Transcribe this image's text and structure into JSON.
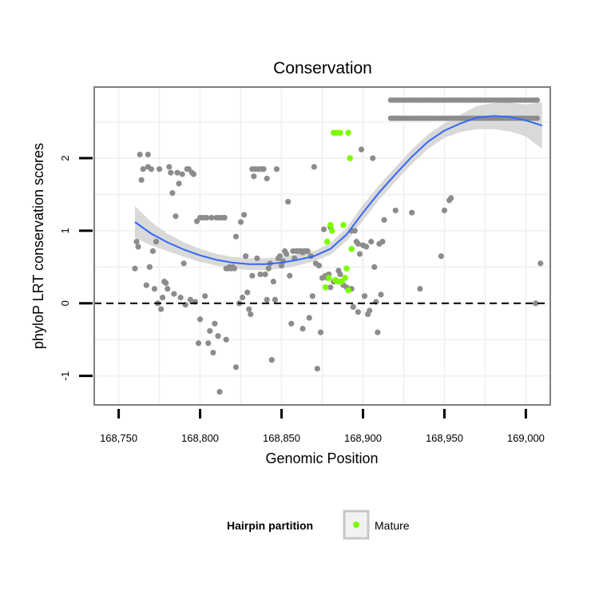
{
  "chart_data": {
    "type": "scatter",
    "title": "Conservation",
    "xlabel": "Genomic Position",
    "ylabel": "phyloP LRT conservation scores",
    "xlim": [
      168735,
      169015
    ],
    "ylim": [
      -1.4,
      2.98
    ],
    "x_ticks": [
      168750,
      168800,
      168850,
      168900,
      168950,
      169000
    ],
    "x_tick_labels": [
      "168,750",
      "168,800",
      "168,850",
      "168,900",
      "168,950",
      "169,000"
    ],
    "y_ticks": [
      -1,
      0,
      1,
      2
    ],
    "y_tick_labels": [
      "-1",
      "0",
      "1",
      "2"
    ],
    "grid": true,
    "reference_line": {
      "y": 0,
      "style": "dashed"
    },
    "legend": {
      "title": "Hairpin partition",
      "position": "bottom",
      "entries": [
        {
          "label": "Mature",
          "color": "#7cfc00"
        }
      ]
    },
    "colors": {
      "other": "#8c8c8c",
      "mature": "#7cfc00",
      "smooth": "#3366ff",
      "ribbon": "#d9d9d9",
      "panel_border": "#7f7f7f",
      "grid": "#f2f2f2"
    },
    "series": [
      {
        "role": "other",
        "points": [
          [
            168760,
            0.48
          ],
          [
            168761,
            0.85
          ],
          [
            168762,
            0.78
          ],
          [
            168763,
            2.05
          ],
          [
            168764,
            1.7
          ],
          [
            168765,
            1.85
          ],
          [
            168767,
            0.25
          ],
          [
            168768,
            2.05
          ],
          [
            168768,
            1.88
          ],
          [
            168769,
            0.5
          ],
          [
            168770,
            1.85
          ],
          [
            168771,
            0.72
          ],
          [
            168772,
            0.2
          ],
          [
            168773,
            0.85
          ],
          [
            168774,
            0.0
          ],
          [
            168775,
            1.85
          ],
          [
            168776,
            -0.08
          ],
          [
            168777,
            0.08
          ],
          [
            168778,
            0.3
          ],
          [
            168779,
            0.28
          ],
          [
            168780,
            0.2
          ],
          [
            168781,
            1.88
          ],
          [
            168782,
            1.8
          ],
          [
            168783,
            1.52
          ],
          [
            168784,
            0.13
          ],
          [
            168785,
            1.2
          ],
          [
            168786,
            1.8
          ],
          [
            168787,
            1.65
          ],
          [
            168788,
            0.08
          ],
          [
            168789,
            1.78
          ],
          [
            168790,
            0.55
          ],
          [
            168791,
            -0.02
          ],
          [
            168792,
            1.85
          ],
          [
            168793,
            1.85
          ],
          [
            168794,
            0.05
          ],
          [
            168795,
            1.8
          ],
          [
            168796,
            1.78
          ],
          [
            168797,
            0.02
          ],
          [
            168798,
            1.13
          ],
          [
            168799,
            -0.55
          ],
          [
            168800,
            1.18
          ],
          [
            168800,
            -0.22
          ],
          [
            168802,
            1.18
          ],
          [
            168803,
            0.1
          ],
          [
            168804,
            1.18
          ],
          [
            168805,
            -0.55
          ],
          [
            168806,
            -0.38
          ],
          [
            168807,
            1.18
          ],
          [
            168808,
            -0.68
          ],
          [
            168809,
            -0.28
          ],
          [
            168810,
            1.18
          ],
          [
            168811,
            -0.45
          ],
          [
            168812,
            1.18
          ],
          [
            168812,
            -1.22
          ],
          [
            168814,
            1.18
          ],
          [
            168815,
            1.18
          ],
          [
            168816,
            0.48
          ],
          [
            168816,
            -0.5
          ],
          [
            168817,
            0.48
          ],
          [
            168818,
            0.5
          ],
          [
            168819,
            0.48
          ],
          [
            168820,
            0.5
          ],
          [
            168821,
            0.48
          ],
          [
            168822,
            0.92
          ],
          [
            168822,
            -0.88
          ],
          [
            168824,
            0.0
          ],
          [
            168825,
            1.12
          ],
          [
            168826,
            0.08
          ],
          [
            168827,
            1.22
          ],
          [
            168828,
            0.65
          ],
          [
            168829,
            0.15
          ],
          [
            168830,
            -0.08
          ],
          [
            168831,
            -0.15
          ],
          [
            168832,
            1.85
          ],
          [
            168832,
            0.38
          ],
          [
            168833,
            1.75
          ],
          [
            168834,
            1.85
          ],
          [
            168835,
            0.62
          ],
          [
            168836,
            1.85
          ],
          [
            168837,
            0.4
          ],
          [
            168838,
            1.85
          ],
          [
            168839,
            1.85
          ],
          [
            168840,
            0.4
          ],
          [
            168841,
            1.72
          ],
          [
            168841,
            0.05
          ],
          [
            168842,
            0.48
          ],
          [
            168843,
            0.55
          ],
          [
            168844,
            -0.78
          ],
          [
            168845,
            0.3
          ],
          [
            168846,
            0.05
          ],
          [
            168847,
            1.85
          ],
          [
            168848,
            0.62
          ],
          [
            168849,
            0.65
          ],
          [
            168850,
            0.52
          ],
          [
            168851,
            0.58
          ],
          [
            168852,
            0.72
          ],
          [
            168853,
            0.68
          ],
          [
            168854,
            1.4
          ],
          [
            168855,
            0.38
          ],
          [
            168856,
            -0.28
          ],
          [
            168857,
            0.72
          ],
          [
            168858,
            0.62
          ],
          [
            168859,
            0.72
          ],
          [
            168860,
            0.72
          ],
          [
            168861,
            0.72
          ],
          [
            168862,
            0.72
          ],
          [
            168863,
            0.7
          ],
          [
            168863,
            -0.35
          ],
          [
            168864,
            0.72
          ],
          [
            168865,
            0.72
          ],
          [
            168866,
            0.72
          ],
          [
            168867,
            -0.2
          ],
          [
            168868,
            0.65
          ],
          [
            168869,
            0.1
          ],
          [
            168870,
            1.88
          ],
          [
            168871,
            0.55
          ],
          [
            168872,
            -0.9
          ],
          [
            168873,
            0.52
          ],
          [
            168874,
            -0.4
          ],
          [
            168875,
            0.35
          ],
          [
            168876,
            1.02
          ],
          [
            168877,
            0.38
          ],
          [
            168878,
            0.35
          ],
          [
            168879,
            0.4
          ],
          [
            168880,
            1.05
          ],
          [
            168880,
            0.22
          ],
          [
            168882,
            0.3
          ],
          [
            168885,
            0.45
          ],
          [
            168886,
            0.4
          ],
          [
            168888,
            0.25
          ],
          [
            168890,
            0.22
          ],
          [
            168893,
            1.0
          ],
          [
            168893,
            0.2
          ],
          [
            168894,
            -0.05
          ],
          [
            168895,
            1.0
          ],
          [
            168896,
            0.85
          ],
          [
            168897,
            0.82
          ],
          [
            168897,
            -0.12
          ],
          [
            168898,
            0.68
          ],
          [
            168899,
            2.12
          ],
          [
            168900,
            0.8
          ],
          [
            168901,
            0.1
          ],
          [
            168902,
            0.78
          ],
          [
            168903,
            -0.15
          ],
          [
            168904,
            -0.1
          ],
          [
            168905,
            0.85
          ],
          [
            168906,
            2.0
          ],
          [
            168907,
            0.5
          ],
          [
            168908,
            0.02
          ],
          [
            168909,
            -0.4
          ],
          [
            168910,
            0.82
          ],
          [
            168911,
            0.12
          ],
          [
            168912,
            0.85
          ],
          [
            168913,
            1.15
          ],
          [
            168920,
            1.28
          ],
          [
            168930,
            1.25
          ],
          [
            168935,
            0.2
          ],
          [
            168948,
            0.65
          ],
          [
            168950,
            1.28
          ],
          [
            168953,
            1.42
          ],
          [
            168954,
            1.45
          ],
          [
            169006,
            0.0
          ],
          [
            169009,
            0.55
          ]
        ]
      },
      {
        "role": "mature",
        "points": [
          [
            168877,
            0.22
          ],
          [
            168878,
            0.85
          ],
          [
            168879,
            0.35
          ],
          [
            168880,
            1.08
          ],
          [
            168881,
            1.0
          ],
          [
            168882,
            2.35
          ],
          [
            168883,
            0.32
          ],
          [
            168884,
            2.35
          ],
          [
            168885,
            0.3
          ],
          [
            168886,
            2.35
          ],
          [
            168887,
            0.3
          ],
          [
            168888,
            1.08
          ],
          [
            168889,
            0.35
          ],
          [
            168890,
            0.48
          ],
          [
            168891,
            2.35
          ],
          [
            168891,
            0.18
          ],
          [
            168892,
            2.0
          ],
          [
            168893,
            0.75
          ]
        ]
      },
      {
        "role": "band",
        "x_start": 168917,
        "x_end": 169007,
        "count": 55,
        "y": [
          2.8,
          2.55
        ]
      }
    ],
    "smooth": {
      "method": "loess",
      "x": [
        168760,
        168770,
        168780,
        168790,
        168800,
        168810,
        168820,
        168830,
        168840,
        168850,
        168860,
        168870,
        168880,
        168890,
        168900,
        168910,
        168920,
        168930,
        168940,
        168950,
        168960,
        168970,
        168980,
        168990,
        169000,
        169010
      ],
      "y": [
        1.12,
        0.96,
        0.84,
        0.74,
        0.66,
        0.6,
        0.56,
        0.54,
        0.54,
        0.56,
        0.6,
        0.65,
        0.75,
        0.95,
        1.25,
        1.53,
        1.78,
        2.02,
        2.23,
        2.38,
        2.48,
        2.56,
        2.58,
        2.57,
        2.52,
        2.45
      ],
      "lower": [
        0.9,
        0.8,
        0.72,
        0.64,
        0.57,
        0.52,
        0.48,
        0.46,
        0.46,
        0.48,
        0.52,
        0.58,
        0.67,
        0.86,
        1.14,
        1.43,
        1.68,
        1.92,
        2.13,
        2.28,
        2.36,
        2.4,
        2.4,
        2.37,
        2.3,
        2.13
      ],
      "upper": [
        1.34,
        1.12,
        0.96,
        0.84,
        0.75,
        0.68,
        0.64,
        0.62,
        0.62,
        0.64,
        0.68,
        0.72,
        0.83,
        1.04,
        1.36,
        1.63,
        1.88,
        2.12,
        2.33,
        2.48,
        2.6,
        2.72,
        2.76,
        2.77,
        2.74,
        2.77
      ]
    }
  }
}
